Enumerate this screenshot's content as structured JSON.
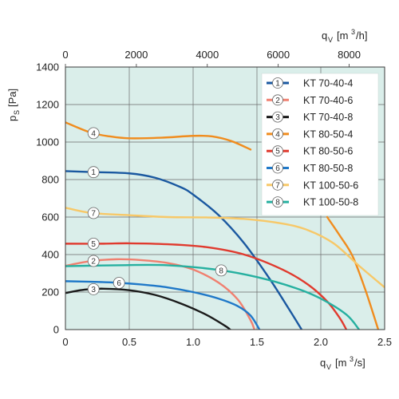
{
  "chart_data": {
    "type": "line",
    "xlabel": "q_V [m3/s]",
    "x2label": "q_V [m3/h]",
    "ylabel": "p_S [Pa]",
    "xlim": [
      0,
      2.5
    ],
    "x2lim": [
      0,
      9000
    ],
    "ylim": [
      0,
      1400
    ],
    "x_ticks": [
      "0",
      "0.5",
      "1.0",
      "1.5",
      "2.0",
      "2.5"
    ],
    "x2_ticks": [
      "0",
      "2000",
      "4000",
      "6000",
      "8000"
    ],
    "y_ticks": [
      "0",
      "200",
      "400",
      "600",
      "800",
      "1000",
      "1200",
      "1400"
    ],
    "grid": true,
    "legend_position": "top-right",
    "series": [
      {
        "name": "KT 70-40-4",
        "marker": "1",
        "color": "#1a58a0",
        "marker_x": 0.22,
        "points": [
          [
            0,
            845
          ],
          [
            0.2,
            840
          ],
          [
            0.5,
            833
          ],
          [
            0.7,
            810
          ],
          [
            0.9,
            760
          ],
          [
            1.0,
            720
          ],
          [
            1.2,
            610
          ],
          [
            1.4,
            460
          ],
          [
            1.6,
            270
          ],
          [
            1.75,
            110
          ],
          [
            1.85,
            0
          ]
        ]
      },
      {
        "name": "KT 70-40-6",
        "marker": "2",
        "color": "#f08070",
        "marker_x": 0.22,
        "points": [
          [
            0,
            340
          ],
          [
            0.2,
            365
          ],
          [
            0.4,
            375
          ],
          [
            0.6,
            370
          ],
          [
            0.8,
            355
          ],
          [
            1.0,
            320
          ],
          [
            1.2,
            250
          ],
          [
            1.35,
            160
          ],
          [
            1.45,
            50
          ],
          [
            1.48,
            0
          ]
        ]
      },
      {
        "name": "KT 70-40-8",
        "marker": "3",
        "color": "#1a1a1a",
        "marker_x": 0.22,
        "points": [
          [
            0,
            195
          ],
          [
            0.15,
            213
          ],
          [
            0.3,
            218
          ],
          [
            0.5,
            210
          ],
          [
            0.7,
            185
          ],
          [
            0.9,
            140
          ],
          [
            1.1,
            80
          ],
          [
            1.25,
            20
          ],
          [
            1.29,
            0
          ]
        ]
      },
      {
        "name": "KT 80-50-4",
        "marker": "4",
        "color": "#f08c1e",
        "marker_x": 0.22,
        "points": [
          [
            0,
            1105
          ],
          [
            0.2,
            1050
          ],
          [
            0.35,
            1030
          ],
          [
            0.5,
            1020
          ],
          [
            0.75,
            1023
          ],
          [
            1.0,
            1033
          ],
          [
            1.15,
            1030
          ],
          [
            1.3,
            1005
          ],
          [
            1.45,
            960
          ]
        ]
      },
      {
        "name": "KT 80-50-4 (branch)",
        "color": "#f08c1e",
        "marker_x": null,
        "points": [
          [
            2.05,
            600
          ],
          [
            2.15,
            500
          ],
          [
            2.25,
            390
          ],
          [
            2.35,
            210
          ],
          [
            2.45,
            0
          ]
        ]
      },
      {
        "name": "KT 80-50-6",
        "marker": "5",
        "color": "#e03a2e",
        "marker_x": 0.22,
        "points": [
          [
            0,
            458
          ],
          [
            0.3,
            458
          ],
          [
            0.5,
            460
          ],
          [
            0.8,
            455
          ],
          [
            1.1,
            440
          ],
          [
            1.4,
            400
          ],
          [
            1.7,
            320
          ],
          [
            1.9,
            240
          ],
          [
            2.05,
            150
          ],
          [
            2.15,
            60
          ],
          [
            2.2,
            0
          ]
        ]
      },
      {
        "name": "KT 80-50-8",
        "marker": "6",
        "color": "#1f78c8",
        "marker_x": 0.42,
        "points": [
          [
            0,
            258
          ],
          [
            0.2,
            255
          ],
          [
            0.4,
            250
          ],
          [
            0.6,
            240
          ],
          [
            0.8,
            225
          ],
          [
            1.0,
            200
          ],
          [
            1.2,
            165
          ],
          [
            1.35,
            125
          ],
          [
            1.45,
            75
          ],
          [
            1.52,
            0
          ]
        ]
      },
      {
        "name": "KT 100-50-6",
        "marker": "7",
        "color": "#f7c868",
        "marker_x": 0.22,
        "points": [
          [
            0,
            650
          ],
          [
            0.2,
            622
          ],
          [
            0.5,
            610
          ],
          [
            0.8,
            600
          ],
          [
            1.1,
            598
          ],
          [
            1.4,
            590
          ],
          [
            1.7,
            565
          ],
          [
            1.9,
            530
          ],
          [
            2.1,
            460
          ],
          [
            2.3,
            340
          ],
          [
            2.5,
            225
          ]
        ]
      },
      {
        "name": "KT 100-50-8",
        "marker": "8",
        "color": "#26b0a0",
        "marker_x": 1.22,
        "points": [
          [
            0,
            338
          ],
          [
            0.4,
            343
          ],
          [
            0.8,
            343
          ],
          [
            1.2,
            318
          ],
          [
            1.5,
            280
          ],
          [
            1.8,
            222
          ],
          [
            2.0,
            165
          ],
          [
            2.2,
            80
          ],
          [
            2.3,
            0
          ]
        ]
      }
    ],
    "legend": [
      {
        "marker": "1",
        "label": "KT 70-40-4",
        "color": "#1a58a0"
      },
      {
        "marker": "2",
        "label": "KT 70-40-6",
        "color": "#f08070"
      },
      {
        "marker": "3",
        "label": "KT 70-40-8",
        "color": "#1a1a1a"
      },
      {
        "marker": "4",
        "label": "KT 80-50-4",
        "color": "#f08c1e"
      },
      {
        "marker": "5",
        "label": "KT 80-50-6",
        "color": "#e03a2e"
      },
      {
        "marker": "6",
        "label": "KT 80-50-8",
        "color": "#1f78c8"
      },
      {
        "marker": "7",
        "label": "KT 100-50-6",
        "color": "#f7c868"
      },
      {
        "marker": "8",
        "label": "KT 100-50-8",
        "color": "#26b0a0"
      }
    ],
    "colors": {
      "plot_background": "#daeeea",
      "grid": "#6a6a6a",
      "frame": "#3a3a3a"
    }
  }
}
